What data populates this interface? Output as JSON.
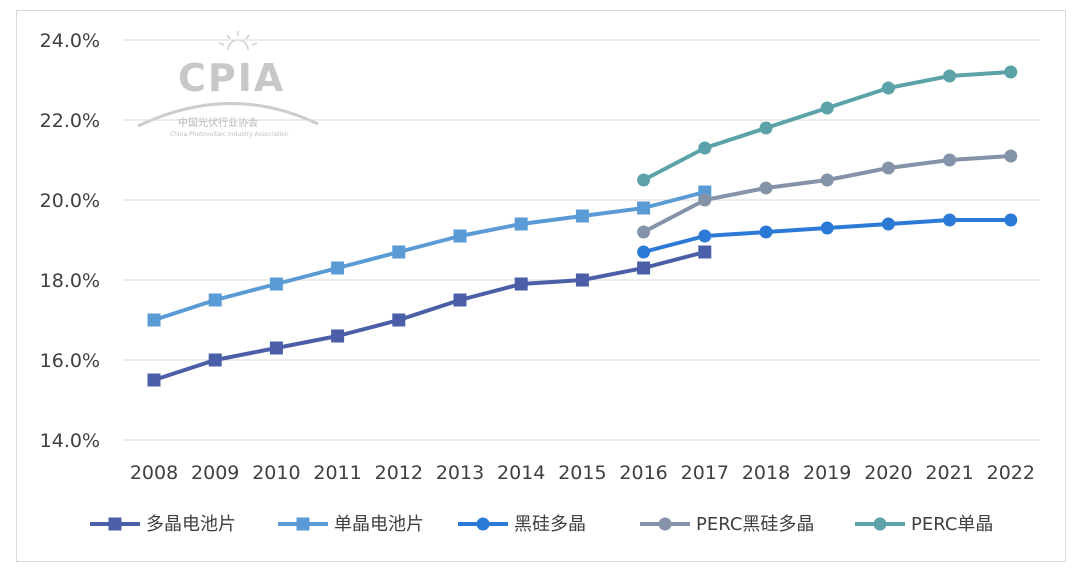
{
  "chart_data": {
    "type": "line",
    "title": "",
    "xlabel": "",
    "ylabel": "",
    "x": [
      "2008",
      "2009",
      "2010",
      "2011",
      "2012",
      "2013",
      "2014",
      "2015",
      "2016",
      "2017",
      "2018",
      "2019",
      "2020",
      "2021",
      "2022"
    ],
    "ylim": [
      14.0,
      24.0
    ],
    "yticks": [
      14.0,
      16.0,
      18.0,
      20.0,
      22.0,
      24.0
    ],
    "ytick_labels": [
      "14.0%",
      "16.0%",
      "18.0%",
      "20.0%",
      "22.0%",
      "24.0%"
    ],
    "grid": "horizontal",
    "legend_position": "bottom",
    "series": [
      {
        "name": "多晶电池片",
        "color": "#4a5fa8",
        "marker": "square",
        "values": [
          15.5,
          16.0,
          16.3,
          16.6,
          17.0,
          17.5,
          17.9,
          18.0,
          18.3,
          18.7,
          null,
          null,
          null,
          null,
          null
        ]
      },
      {
        "name": "单晶电池片",
        "color": "#5b9bd5",
        "marker": "square",
        "values": [
          17.0,
          17.5,
          17.9,
          18.3,
          18.7,
          19.1,
          19.4,
          19.6,
          19.8,
          20.2,
          null,
          null,
          null,
          null,
          null
        ]
      },
      {
        "name": "黑硅多晶",
        "color": "#2a7ad6",
        "marker": "circle",
        "values": [
          null,
          null,
          null,
          null,
          null,
          null,
          null,
          null,
          18.7,
          19.1,
          19.2,
          19.3,
          19.4,
          19.5,
          19.5
        ]
      },
      {
        "name": "PERC黑硅多晶",
        "color": "#8493a8",
        "marker": "circle",
        "values": [
          null,
          null,
          null,
          null,
          null,
          null,
          null,
          null,
          19.2,
          20.0,
          20.3,
          20.5,
          20.8,
          21.0,
          21.1
        ]
      },
      {
        "name": "PERC单晶",
        "color": "#5ba3a8",
        "marker": "circle",
        "values": [
          null,
          null,
          null,
          null,
          null,
          null,
          null,
          null,
          20.5,
          21.3,
          21.8,
          22.3,
          22.8,
          23.1,
          23.2
        ]
      }
    ]
  },
  "watermark": {
    "logo_text": "CPIA",
    "org_name": "中国光伏行业协会",
    "org_name_en": "China Photovoltaic Industry Association"
  }
}
